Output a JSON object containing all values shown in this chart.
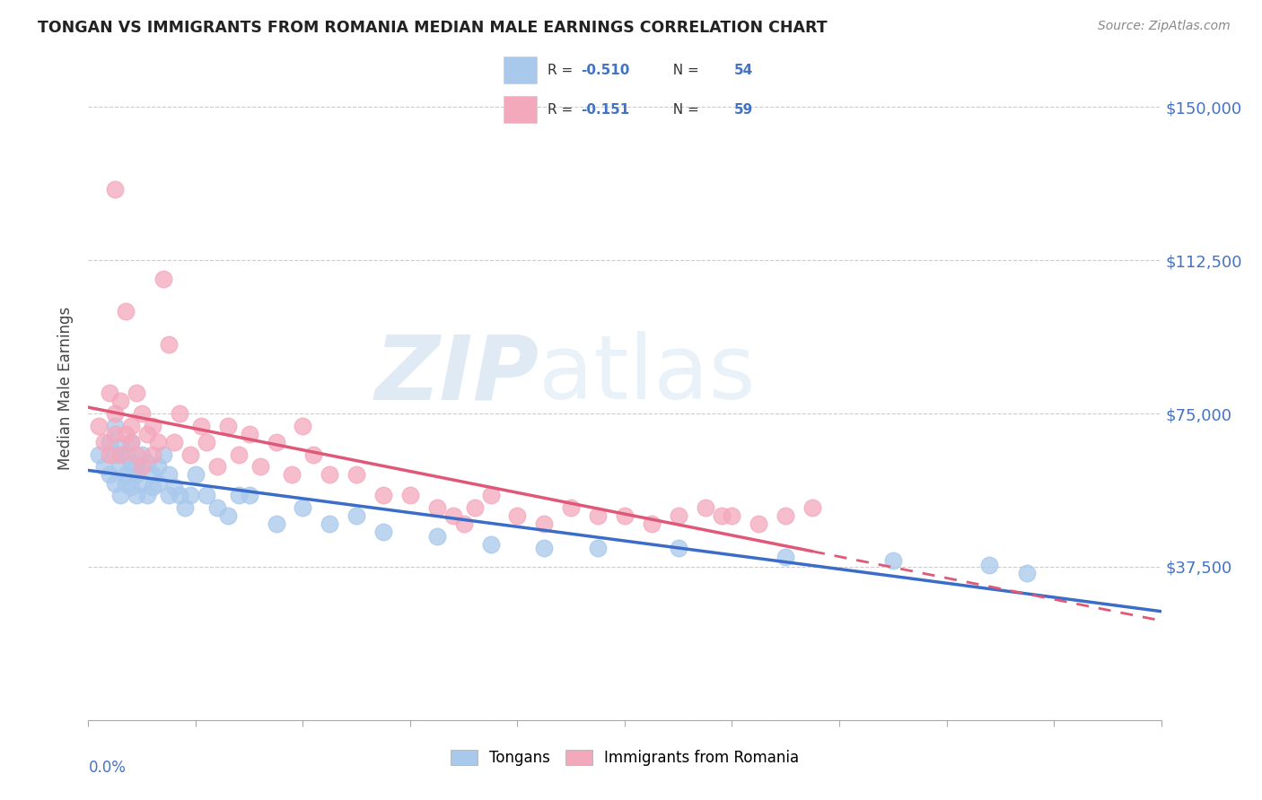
{
  "title": "TONGAN VS IMMIGRANTS FROM ROMANIA MEDIAN MALE EARNINGS CORRELATION CHART",
  "source": "Source: ZipAtlas.com",
  "ylabel": "Median Male Earnings",
  "yticks": [
    0,
    37500,
    75000,
    112500,
    150000
  ],
  "ytick_labels": [
    "",
    "$37,500",
    "$75,000",
    "$112,500",
    "$150,000"
  ],
  "xlim": [
    0.0,
    0.2
  ],
  "ylim": [
    0,
    162500
  ],
  "legend1_r": "-0.510",
  "legend1_n": "54",
  "legend2_r": "-0.151",
  "legend2_n": "59",
  "color_blue": "#A8C8EC",
  "color_pink": "#F4A8BC",
  "color_blue_dark": "#3A6CC8",
  "color_pink_dark": "#E05878",
  "color_axis": "#4472C4",
  "watermark_zip": "ZIP",
  "watermark_atlas": "atlas",
  "tongans_x": [
    0.002,
    0.003,
    0.004,
    0.004,
    0.005,
    0.005,
    0.005,
    0.006,
    0.006,
    0.006,
    0.007,
    0.007,
    0.007,
    0.008,
    0.008,
    0.008,
    0.009,
    0.009,
    0.009,
    0.01,
    0.01,
    0.011,
    0.011,
    0.012,
    0.012,
    0.013,
    0.013,
    0.014,
    0.015,
    0.015,
    0.016,
    0.017,
    0.018,
    0.019,
    0.02,
    0.022,
    0.024,
    0.026,
    0.028,
    0.03,
    0.035,
    0.04,
    0.045,
    0.05,
    0.055,
    0.065,
    0.075,
    0.085,
    0.095,
    0.11,
    0.13,
    0.15,
    0.168,
    0.175
  ],
  "tongans_y": [
    65000,
    62000,
    68000,
    60000,
    65000,
    58000,
    72000,
    62000,
    55000,
    67000,
    60000,
    65000,
    58000,
    63000,
    57000,
    68000,
    60000,
    55000,
    62000,
    65000,
    58000,
    63000,
    55000,
    60000,
    57000,
    62000,
    58000,
    65000,
    55000,
    60000,
    57000,
    55000,
    52000,
    55000,
    60000,
    55000,
    52000,
    50000,
    55000,
    55000,
    48000,
    52000,
    48000,
    50000,
    46000,
    45000,
    43000,
    42000,
    42000,
    42000,
    40000,
    39000,
    38000,
    36000
  ],
  "romania_x": [
    0.002,
    0.003,
    0.004,
    0.004,
    0.005,
    0.005,
    0.005,
    0.006,
    0.006,
    0.007,
    0.007,
    0.008,
    0.008,
    0.009,
    0.009,
    0.01,
    0.01,
    0.011,
    0.012,
    0.012,
    0.013,
    0.014,
    0.015,
    0.016,
    0.017,
    0.019,
    0.021,
    0.022,
    0.024,
    0.026,
    0.028,
    0.03,
    0.032,
    0.035,
    0.038,
    0.04,
    0.042,
    0.045,
    0.05,
    0.055,
    0.06,
    0.065,
    0.068,
    0.07,
    0.072,
    0.075,
    0.08,
    0.085,
    0.09,
    0.095,
    0.1,
    0.105,
    0.11,
    0.115,
    0.118,
    0.12,
    0.125,
    0.13,
    0.135
  ],
  "romania_y": [
    72000,
    68000,
    80000,
    65000,
    75000,
    70000,
    130000,
    65000,
    78000,
    70000,
    100000,
    72000,
    68000,
    65000,
    80000,
    62000,
    75000,
    70000,
    65000,
    72000,
    68000,
    108000,
    92000,
    68000,
    75000,
    65000,
    72000,
    68000,
    62000,
    72000,
    65000,
    70000,
    62000,
    68000,
    60000,
    72000,
    65000,
    60000,
    60000,
    55000,
    55000,
    52000,
    50000,
    48000,
    52000,
    55000,
    50000,
    48000,
    52000,
    50000,
    50000,
    48000,
    50000,
    52000,
    50000,
    50000,
    48000,
    50000,
    52000
  ]
}
